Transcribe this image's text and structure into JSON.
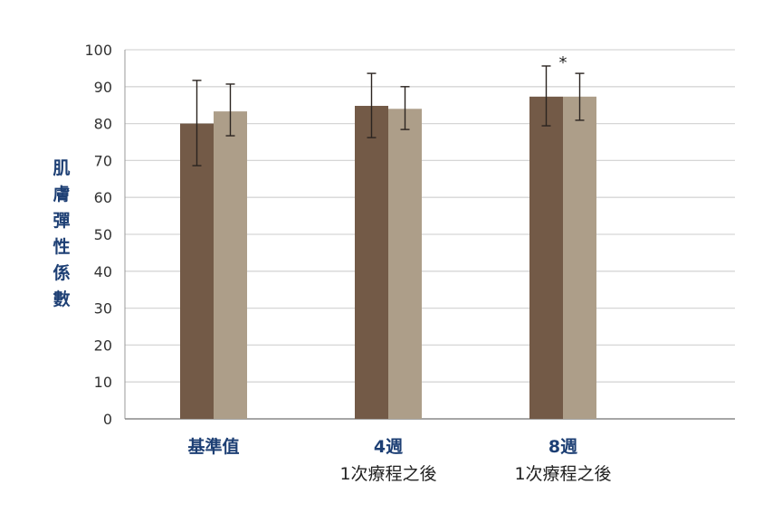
{
  "chart_data": {
    "type": "bar",
    "ylabel": "肌膚彈性係數",
    "ylim": [
      0,
      100
    ],
    "yticks": [
      0,
      10,
      20,
      30,
      40,
      50,
      60,
      70,
      80,
      90,
      100
    ],
    "grid": true,
    "categories": [
      [
        "基準值",
        ""
      ],
      [
        "4週",
        "1次療程之後"
      ],
      [
        "8週",
        "1次療程之後"
      ]
    ],
    "series": [
      {
        "color": "#735a47",
        "values": [
          80,
          84.8,
          87.3
        ],
        "err_low": [
          68.6,
          76.2,
          79.4
        ],
        "err_high": [
          91.7,
          93.6,
          95.6
        ]
      },
      {
        "color": "#ad9e89",
        "values": [
          83.3,
          84,
          87.3
        ],
        "err_low": [
          76.7,
          78.4,
          80.9
        ],
        "err_high": [
          90.7,
          90,
          93.6
        ]
      }
    ],
    "annotations": [
      {
        "category": 2,
        "text": "*"
      }
    ]
  }
}
